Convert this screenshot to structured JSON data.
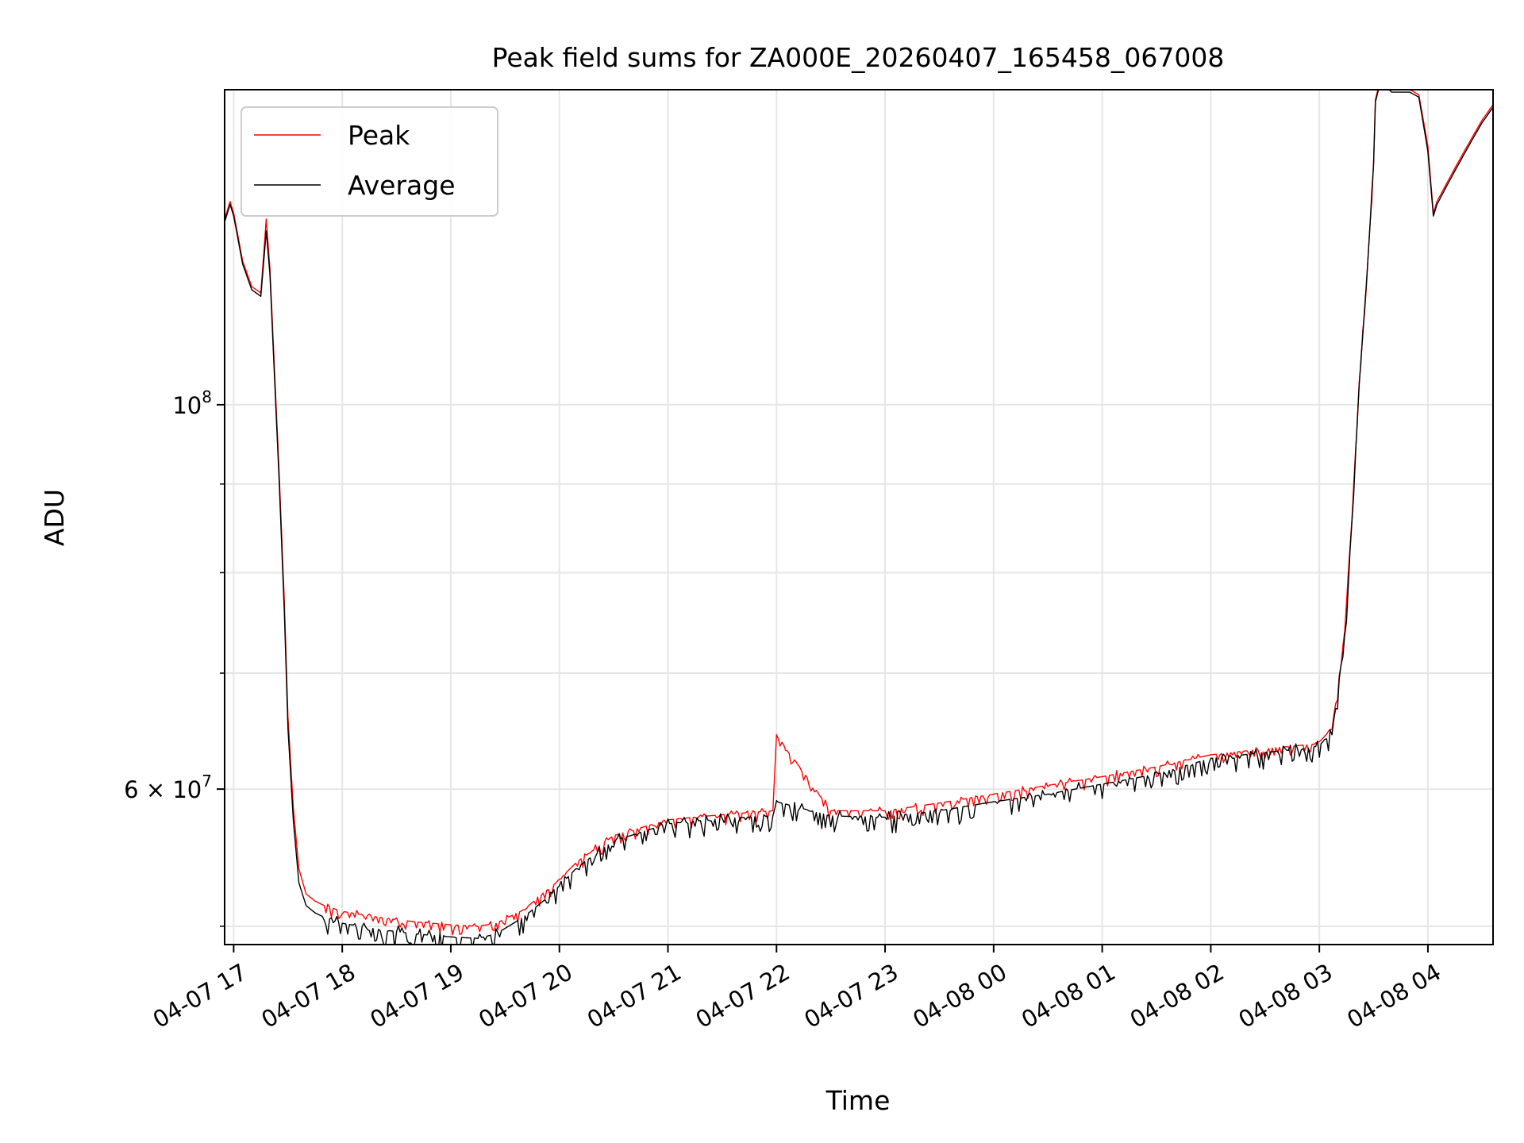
{
  "chart_data": {
    "type": "line",
    "title": "Peak field sums for ZA000E_20260407_165458_067008",
    "xlabel": "Time",
    "ylabel": "ADU",
    "yscale": "log",
    "grid": true,
    "legend_position": "upper-left",
    "xlim": [
      "2026-04-07 16:55",
      "2026-04-08 04:36"
    ],
    "ylim": [
      48800000,
      152000000
    ],
    "x_ticks": [
      {
        "value": "2026-04-07 17:00",
        "label": "04-07 17"
      },
      {
        "value": "2026-04-07 18:00",
        "label": "04-07 18"
      },
      {
        "value": "2026-04-07 19:00",
        "label": "04-07 19"
      },
      {
        "value": "2026-04-07 20:00",
        "label": "04-07 20"
      },
      {
        "value": "2026-04-07 21:00",
        "label": "04-07 21"
      },
      {
        "value": "2026-04-07 22:00",
        "label": "04-07 22"
      },
      {
        "value": "2026-04-07 23:00",
        "label": "04-07 23"
      },
      {
        "value": "2026-04-08 00:00",
        "label": "04-08 00"
      },
      {
        "value": "2026-04-08 01:00",
        "label": "04-08 01"
      },
      {
        "value": "2026-04-08 02:00",
        "label": "04-08 02"
      },
      {
        "value": "2026-04-08 03:00",
        "label": "04-08 03"
      },
      {
        "value": "2026-04-08 04:00",
        "label": "04-08 04"
      }
    ],
    "y_major_ticks": [
      {
        "value": 60000000,
        "label_base": "6 × 10",
        "label_exp": "7"
      },
      {
        "value": 100000000,
        "label_base": "10",
        "label_exp": "8"
      }
    ],
    "y_minor_ticks": [
      50000000,
      70000000,
      80000000,
      90000000
    ],
    "series": [
      {
        "name": "Peak",
        "color": "#ff0000",
        "x": [
          "2026-04-07 16:55",
          "2026-04-07 16:58",
          "2026-04-07 17:00",
          "2026-04-07 17:05",
          "2026-04-07 17:10",
          "2026-04-07 17:15",
          "2026-04-07 17:18",
          "2026-04-07 17:20",
          "2026-04-07 17:22",
          "2026-04-07 17:25",
          "2026-04-07 17:28",
          "2026-04-07 17:30",
          "2026-04-07 17:33",
          "2026-04-07 17:36",
          "2026-04-07 17:40",
          "2026-04-07 17:45",
          "2026-04-07 17:50",
          "2026-04-07 17:55",
          "2026-04-07 18:00",
          "2026-04-07 18:20",
          "2026-04-07 18:40",
          "2026-04-07 19:00",
          "2026-04-07 19:15",
          "2026-04-07 19:25",
          "2026-04-07 19:40",
          "2026-04-07 19:55",
          "2026-04-07 20:10",
          "2026-04-07 20:30",
          "2026-04-07 21:00",
          "2026-04-07 21:30",
          "2026-04-07 21:58",
          "2026-04-07 22:00",
          "2026-04-07 22:30",
          "2026-04-07 23:00",
          "2026-04-07 23:30",
          "2026-04-08 00:00",
          "2026-04-08 00:30",
          "2026-04-08 01:00",
          "2026-04-08 01:30",
          "2026-04-08 02:00",
          "2026-04-08 02:30",
          "2026-04-08 02:50",
          "2026-04-08 02:56",
          "2026-04-08 03:00",
          "2026-04-08 03:02",
          "2026-04-08 03:05",
          "2026-04-08 03:08",
          "2026-04-08 03:10",
          "2026-04-08 03:14",
          "2026-04-08 03:18",
          "2026-04-08 03:22",
          "2026-04-08 03:27",
          "2026-04-08 03:30",
          "2026-04-08 03:31",
          "2026-04-08 03:33",
          "2026-04-08 03:37",
          "2026-04-08 03:40",
          "2026-04-08 03:45",
          "2026-04-08 03:50",
          "2026-04-08 03:55",
          "2026-04-08 04:00",
          "2026-04-08 04:03",
          "2026-04-08 04:05",
          "2026-04-08 04:10",
          "2026-04-08 04:15",
          "2026-04-08 04:20",
          "2026-04-08 04:25",
          "2026-04-08 04:30",
          "2026-04-08 04:36"
        ],
        "y": [
          128000000,
          131000000,
          129000000,
          121000000,
          117000000,
          116000000,
          128000000,
          120000000,
          108000000,
          92000000,
          77000000,
          66000000,
          58500000,
          54000000,
          52200000,
          51700000,
          51400000,
          51200000,
          51000000,
          50600000,
          50300000,
          50100000,
          50000000,
          50200000,
          51100000,
          52600000,
          54500000,
          56400000,
          57600000,
          58000000,
          58300000,
          64500000,
          58300000,
          58300000,
          58900000,
          59600000,
          60300000,
          61000000,
          61800000,
          62800000,
          63300000,
          63600000,
          63700000,
          63900000,
          64200000,
          64800000,
          66100000,
          68400000,
          74000000,
          86000000,
          103000000,
          122000000,
          138000000,
          150000000,
          153000000,
          153000000,
          152000000,
          152000000,
          152000000,
          151000000,
          141000000,
          129000000,
          131000000,
          134000000,
          137000000,
          140000000,
          143000000,
          146000000,
          149000000
        ],
        "noise": [
          0.014,
          0.005
        ]
      },
      {
        "name": "Average",
        "color": "#000000",
        "x": [
          "2026-04-07 16:55",
          "2026-04-07 16:58",
          "2026-04-07 17:00",
          "2026-04-07 17:05",
          "2026-04-07 17:10",
          "2026-04-07 17:15",
          "2026-04-07 17:18",
          "2026-04-07 17:20",
          "2026-04-07 17:22",
          "2026-04-07 17:25",
          "2026-04-07 17:28",
          "2026-04-07 17:30",
          "2026-04-07 17:33",
          "2026-04-07 17:36",
          "2026-04-07 17:40",
          "2026-04-07 17:45",
          "2026-04-07 17:50",
          "2026-04-07 17:55",
          "2026-04-07 18:00",
          "2026-04-07 18:20",
          "2026-04-07 18:40",
          "2026-04-07 19:00",
          "2026-04-07 19:15",
          "2026-04-07 19:25",
          "2026-04-07 19:40",
          "2026-04-07 19:55",
          "2026-04-07 20:10",
          "2026-04-07 20:30",
          "2026-04-07 21:00",
          "2026-04-07 21:30",
          "2026-04-07 21:58",
          "2026-04-07 22:00",
          "2026-04-07 22:30",
          "2026-04-07 23:00",
          "2026-04-07 23:30",
          "2026-04-08 00:00",
          "2026-04-08 00:30",
          "2026-04-08 01:00",
          "2026-04-08 01:30",
          "2026-04-08 02:00",
          "2026-04-08 02:30",
          "2026-04-08 02:50",
          "2026-04-08 02:56",
          "2026-04-08 03:00",
          "2026-04-08 03:02",
          "2026-04-08 03:05",
          "2026-04-08 03:08",
          "2026-04-08 03:10",
          "2026-04-08 03:14",
          "2026-04-08 03:18",
          "2026-04-08 03:22",
          "2026-04-08 03:27",
          "2026-04-08 03:30",
          "2026-04-08 03:31",
          "2026-04-08 03:33",
          "2026-04-08 03:37",
          "2026-04-08 03:40",
          "2026-04-08 03:45",
          "2026-04-08 03:50",
          "2026-04-08 03:55",
          "2026-04-08 04:00",
          "2026-04-08 04:03",
          "2026-04-08 04:05",
          "2026-04-08 04:10",
          "2026-04-08 04:15",
          "2026-04-08 04:20",
          "2026-04-08 04:25",
          "2026-04-08 04:30",
          "2026-04-08 04:36"
        ],
        "y": [
          127500000,
          130500000,
          128500000,
          120500000,
          116500000,
          115500000,
          126000000,
          119000000,
          107000000,
          91000000,
          76000000,
          65000000,
          57500000,
          53000000,
          51400000,
          50900000,
          50600000,
          50400000,
          50200000,
          49800000,
          49500000,
          49300000,
          49200000,
          49500000,
          50600000,
          52100000,
          54100000,
          56000000,
          57300000,
          57700000,
          57900000,
          59000000,
          57900000,
          57800000,
          58300000,
          59000000,
          59600000,
          60400000,
          61200000,
          62500000,
          63000000,
          63300000,
          63400000,
          63600000,
          63900000,
          64500000,
          65800000,
          68100000,
          73600000,
          85600000,
          102500000,
          121500000,
          137500000,
          149500000,
          152500000,
          152500000,
          151500000,
          151500000,
          151500000,
          150500000,
          140000000,
          128500000,
          130500000,
          133500000,
          136500000,
          139500000,
          142500000,
          145500000,
          148500000
        ],
        "noise": [
          0.022,
          0.008
        ]
      }
    ]
  }
}
